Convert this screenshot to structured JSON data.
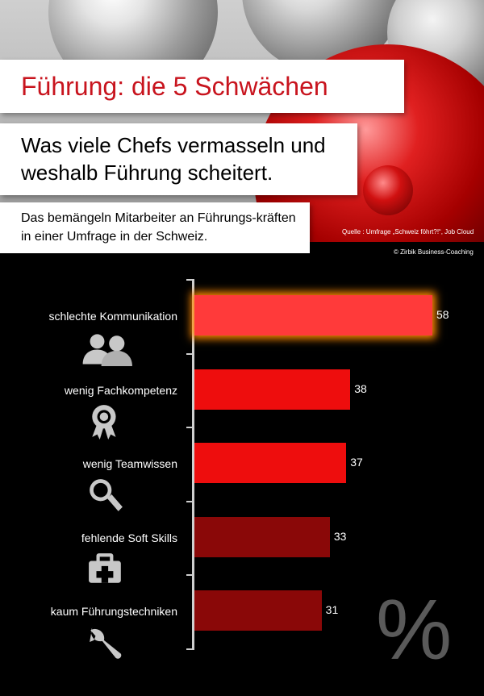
{
  "header": {
    "title": "Führung: die 5 Schwächen",
    "subtitle": "Was viele Chefs vermasseln und weshalb Führung scheitert.",
    "note": "Das bemängeln Mitarbeiter an Führungs-kräften in einer Umfrage in der Schweiz.",
    "source": "Quelle : Umfrage „Schweiz föhrt?!“, Job Cloud",
    "copyright": "© Zirbik Business-Coaching"
  },
  "unit_symbol": "%",
  "chart_data": {
    "type": "bar",
    "orientation": "horizontal",
    "categories": [
      "schlechte Kommunikation",
      "wenig Fachkompetenz",
      "wenig Teamwissen",
      "fehlende Soft Skills",
      "kaum Führungstechniken"
    ],
    "values": [
      58,
      38,
      37,
      33,
      31
    ],
    "value_labels": [
      "58",
      "38",
      "37",
      "33",
      "31"
    ],
    "icons": [
      "people-icon",
      "award-badge-icon",
      "magnifier-icon",
      "toolbox-icon",
      "wrench-icon"
    ],
    "bar_colors": [
      "#ff3a3a",
      "#ee0d0d",
      "#ee0d0d",
      "#8a0808",
      "#8a0808"
    ],
    "highlight_glow_color": "#ff8a00",
    "xlim": [
      0,
      60
    ],
    "grid": false,
    "legend": "none"
  }
}
